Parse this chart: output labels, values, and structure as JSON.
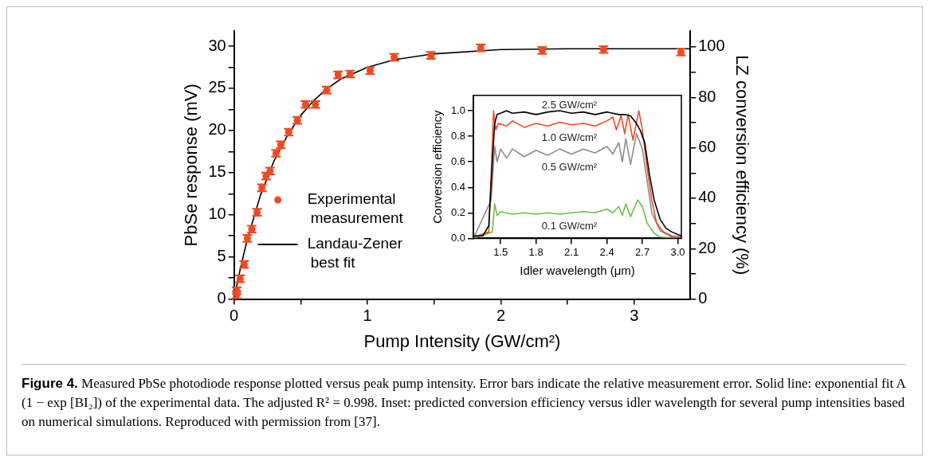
{
  "chart_data": [
    {
      "type": "scatter",
      "xlabel": "Pump Intensity (GW/cm²)",
      "ylabel": "PbSe response (mV)",
      "y2label": "LZ conversion efficiency (%)",
      "xlim": [
        0,
        3.42
      ],
      "xticks": [
        0,
        {
          "value": 0.5,
          "label": null
        },
        1,
        {
          "value": 1.5,
          "label": null
        },
        2,
        {
          "value": 2.5,
          "label": null
        },
        3
      ],
      "ylim": [
        0,
        31.8
      ],
      "yticks": [
        0,
        {
          "value": 2.5,
          "label": null
        },
        5,
        {
          "value": 7.5,
          "label": null
        },
        10,
        {
          "value": 12.5,
          "label": null
        },
        15,
        {
          "value": 17.5,
          "label": null
        },
        20,
        {
          "value": 22.5,
          "label": null
        },
        25,
        {
          "value": 27.5,
          "label": null
        },
        30
      ],
      "y2lim": [
        0,
        106.3
      ],
      "y2ticks": [
        0,
        {
          "value": 10,
          "label": null
        },
        20,
        {
          "value": 30,
          "label": null
        },
        40,
        {
          "value": 50,
          "label": null
        },
        60,
        {
          "value": 70,
          "label": null
        },
        80,
        {
          "value": 90,
          "label": null
        },
        100
      ],
      "grid": false,
      "legend": "left",
      "series": [
        {
          "name": "Experimental measurement",
          "marker": "circle",
          "color": "#f04a23",
          "x": [
            0.02,
            0.02,
            0.046,
            0.076,
            0.1,
            0.133,
            0.173,
            0.209,
            0.24,
            0.27,
            0.315,
            0.35,
            0.41,
            0.475,
            0.536,
            0.61,
            0.695,
            0.78,
            0.87,
            1.02,
            1.2,
            1.476,
            1.85,
            2.31,
            2.77,
            3.35
          ],
          "values": [
            0.5,
            1.0,
            2.4,
            4.1,
            7.2,
            8.3,
            10.3,
            13.2,
            14.6,
            15.2,
            17.3,
            18.3,
            19.8,
            21.2,
            23.1,
            23.1,
            24.8,
            26.6,
            26.7,
            27.1,
            28.7,
            28.9,
            29.8,
            29.5,
            29.6,
            29.3
          ],
          "errors": [
            0.4,
            0.4,
            0.4,
            0.4,
            0.4,
            0.4,
            0.4,
            0.4,
            0.4,
            0.4,
            0.4,
            0.4,
            0.4,
            0.4,
            0.4,
            0.4,
            0.4,
            0.4,
            0.4,
            0.4,
            0.4,
            0.4,
            0.4,
            0.4,
            0.4,
            0.4
          ]
        },
        {
          "name": "Landau-Zener best fit",
          "type": "line",
          "marker": "none",
          "color": "#000000",
          "x": [
            0,
            0.05,
            0.1,
            0.2,
            0.3,
            0.4,
            0.5,
            0.6,
            0.7,
            0.8,
            1.0,
            1.2,
            1.5,
            2,
            2.5,
            3,
            3.42
          ],
          "values": [
            0,
            3.8,
            7.1,
            12.4,
            16.4,
            19.4,
            21.8,
            23.6,
            25.0,
            26.1,
            27.5,
            28.4,
            29.1,
            29.6,
            29.7,
            29.7,
            29.7
          ]
        }
      ],
      "annotations": [
        "Figure 4. Measured PbSe photodiode response plotted versus peak pump intensity. Error bars indicate the relative measurement error. Solid line: exponential fit A (1 − exp [BI₂]) of the experimental data. The adjusted R² = 0.998. Inset: predicted conversion efficiency versus idler wavelength for several pump intensities based on numerical simulations. Reproduced with permission from [37]."
      ]
    },
    {
      "type": "line",
      "xlabel": "Idler wavelength (μm)",
      "ylabel": "Conversion efficiency",
      "xlim": [
        1.27,
        3.03
      ],
      "xticks": [
        1.5,
        1.8,
        2.1,
        2.4,
        2.7,
        {
          "value": 3,
          "label": "3.0"
        }
      ],
      "ylim": [
        0,
        1.12
      ],
      "yticks": [
        {
          "value": 0,
          "label": "0.0"
        },
        0.2,
        0.4,
        0.6,
        0.8,
        {
          "value": 1,
          "label": "1.0"
        }
      ],
      "grid": false,
      "marker": "none",
      "line_style": "solid",
      "series": [
        {
          "name": "2.5 GW/cm²",
          "color": "#000000",
          "x": [
            1.27,
            1.35,
            1.4,
            1.43,
            1.45,
            1.47,
            1.5,
            1.55,
            1.6,
            1.7,
            1.8,
            1.9,
            2.0,
            2.1,
            2.2,
            2.3,
            2.4,
            2.5,
            2.55,
            2.6,
            2.65,
            2.68,
            2.72,
            2.76,
            2.8,
            2.85,
            2.9,
            2.95,
            3.0,
            3.03
          ],
          "values": [
            0.02,
            0.02,
            0.1,
            0.6,
            0.9,
            0.97,
            0.98,
            1.0,
            0.98,
            0.99,
            0.97,
            0.99,
            1.0,
            0.98,
            0.99,
            0.97,
            0.99,
            0.97,
            0.97,
            0.96,
            0.9,
            0.85,
            0.75,
            0.5,
            0.3,
            0.15,
            0.08,
            0.05,
            0.03,
            0.02
          ]
        },
        {
          "name": "1.0 GW/cm²",
          "color": "#f04a23",
          "x": [
            1.27,
            1.4,
            1.42,
            1.44,
            1.46,
            1.48,
            1.55,
            1.6,
            1.7,
            1.8,
            1.9,
            2.0,
            2.1,
            2.2,
            2.3,
            2.4,
            2.45,
            2.48,
            2.52,
            2.55,
            2.58,
            2.62,
            2.67,
            2.7,
            2.74,
            2.78,
            2.82,
            2.88,
            2.95,
            3.03
          ],
          "values": [
            0.01,
            0.05,
            0.5,
            1.0,
            0.85,
            0.9,
            0.88,
            0.92,
            0.87,
            0.9,
            0.88,
            0.91,
            0.89,
            0.9,
            0.88,
            0.92,
            0.95,
            0.85,
            0.96,
            0.82,
            0.97,
            0.77,
            1.0,
            0.85,
            0.55,
            0.3,
            0.12,
            0.05,
            0.02,
            0.01
          ]
        },
        {
          "name": "0.5 GW/cm²",
          "color": "#8c8c8c",
          "x": [
            1.27,
            1.42,
            1.45,
            1.47,
            1.5,
            1.55,
            1.6,
            1.7,
            1.8,
            1.9,
            2.0,
            2.1,
            2.2,
            2.3,
            2.4,
            2.45,
            2.5,
            2.53,
            2.56,
            2.6,
            2.65,
            2.7,
            2.74,
            2.78,
            2.85,
            2.95,
            3.03
          ],
          "values": [
            0.0,
            0.3,
            0.72,
            0.6,
            0.7,
            0.63,
            0.7,
            0.64,
            0.69,
            0.65,
            0.7,
            0.66,
            0.7,
            0.67,
            0.72,
            0.66,
            0.75,
            0.6,
            0.78,
            0.58,
            0.82,
            0.7,
            0.45,
            0.2,
            0.06,
            0.01,
            0.0
          ]
        },
        {
          "name": "0.1 GW/cm²",
          "color": "#6ac24a",
          "x": [
            1.27,
            1.43,
            1.45,
            1.47,
            1.5,
            1.6,
            1.7,
            1.8,
            1.9,
            2.0,
            2.1,
            2.2,
            2.3,
            2.4,
            2.45,
            2.5,
            2.53,
            2.56,
            2.6,
            2.66,
            2.7,
            2.74,
            2.8,
            2.85,
            3.03
          ],
          "values": [
            0.0,
            0.05,
            0.27,
            0.18,
            0.21,
            0.19,
            0.2,
            0.19,
            0.2,
            0.19,
            0.2,
            0.21,
            0.2,
            0.23,
            0.2,
            0.25,
            0.18,
            0.27,
            0.17,
            0.3,
            0.25,
            0.12,
            0.04,
            0.01,
            0.0
          ]
        }
      ]
    }
  ]
}
